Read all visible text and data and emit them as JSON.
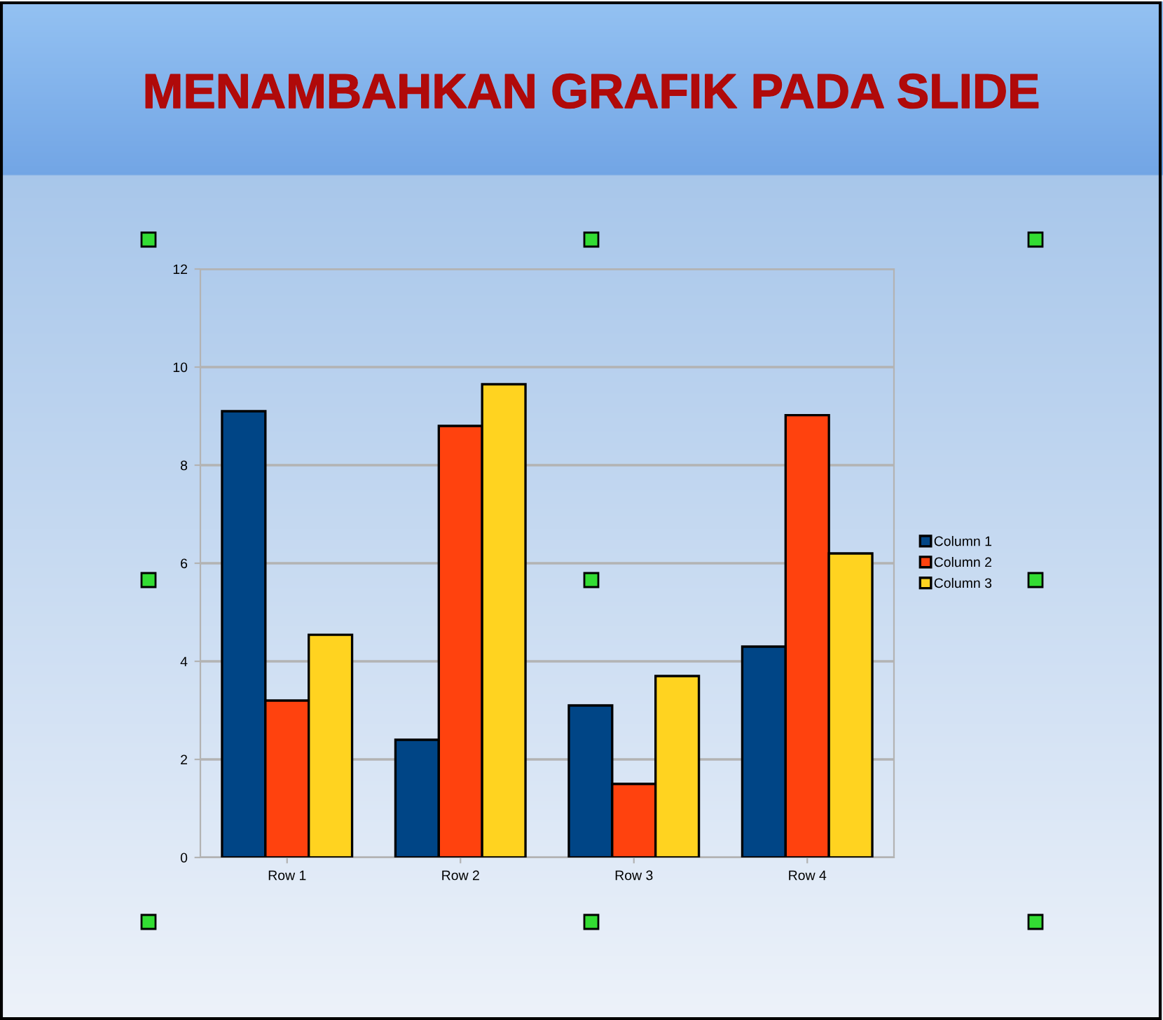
{
  "chart_data": {
    "type": "bar",
    "title": "MENAMBAHKAN GRAFIK PADA SLIDE",
    "categories": [
      "Row 1",
      "Row 2",
      "Row 3",
      "Row 4"
    ],
    "series": [
      {
        "name": "Column 1",
        "color": "#004586",
        "values": [
          9.1,
          2.4,
          3.1,
          4.3
        ]
      },
      {
        "name": "Column 2",
        "color": "#ff420e",
        "values": [
          3.2,
          8.8,
          1.5,
          9.02
        ]
      },
      {
        "name": "Column 3",
        "color": "#ffd320",
        "values": [
          4.54,
          9.65,
          3.7,
          6.2
        ]
      }
    ],
    "ylim": [
      0,
      12
    ],
    "yticks": [
      0,
      2,
      4,
      6,
      8,
      10,
      12
    ],
    "grid": "y",
    "legend": "right"
  }
}
